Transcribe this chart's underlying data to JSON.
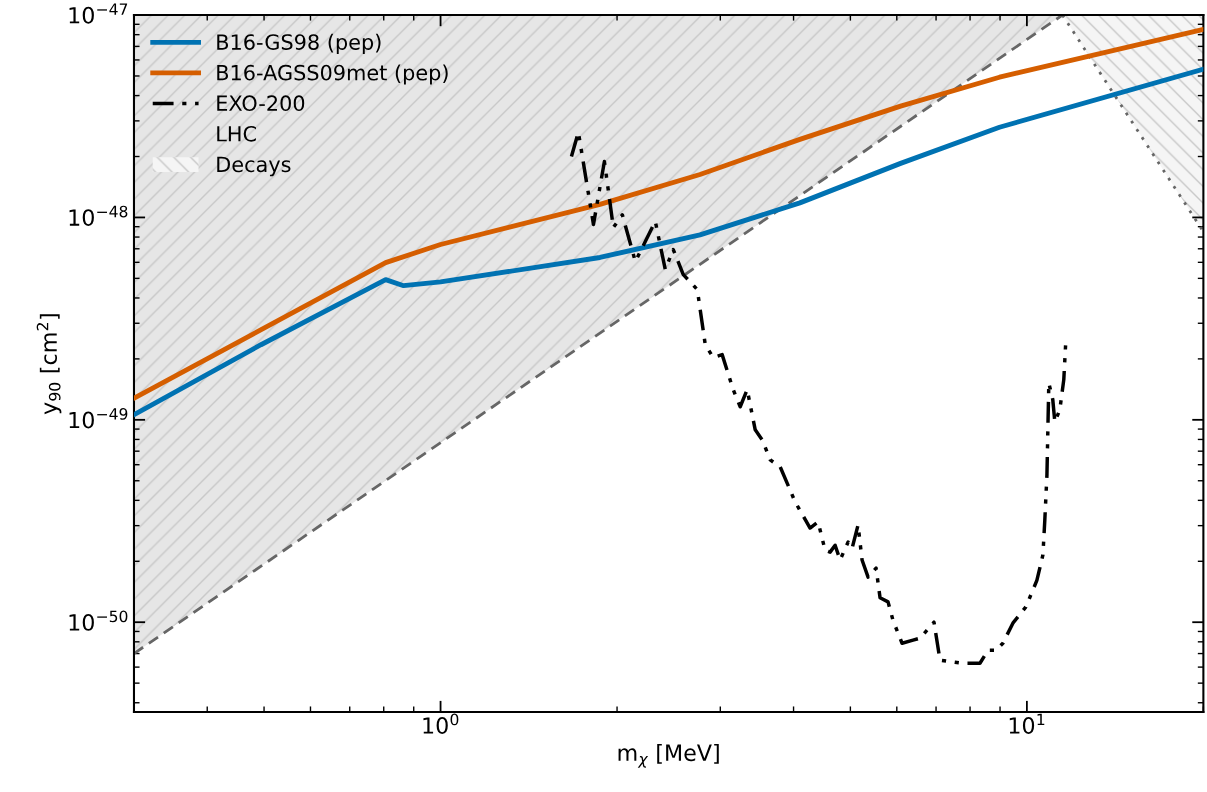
{
  "chart_data": {
    "type": "line",
    "xlabel": "m$_{χ}$ [MeV]",
    "ylabel": "y$_{90}$ [cm$^{2}$]",
    "log": "xy",
    "xlim": [
      0.3,
      20
    ],
    "ylim": [
      3.6e-51,
      1e-47
    ],
    "xticks": [
      {
        "value": 1,
        "label": "10$^{0}$"
      },
      {
        "value": 10,
        "label": "10$^{1}$"
      }
    ],
    "yticks": [
      {
        "value": 1e-50,
        "label": "10$^{−50}$"
      },
      {
        "value": 1e-49,
        "label": "10$^{−49}$"
      },
      {
        "value": 1e-48,
        "label": "10$^{−48}$"
      },
      {
        "value": 1e-47,
        "label": "10$^{−47}$"
      }
    ],
    "legend": "top left",
    "grid": false,
    "series": [
      {
        "name": "B16-GS98 (pep)",
        "color": "#0072b2",
        "line_style": "solid",
        "x": [
          0.3,
          0.494,
          0.806,
          0.865,
          1.0,
          1.87,
          2.77,
          4.1,
          6.09,
          8.98,
          20
        ],
        "values": [
          1.06e-49,
          2.35e-49,
          4.93e-49,
          4.6e-49,
          4.8e-49,
          6.34e-49,
          8.2e-49,
          1.18e-48,
          1.85e-48,
          2.79e-48,
          5.4e-48
        ]
      },
      {
        "name": "B16-AGSS09met (pep)",
        "color": "#d55e00",
        "line_style": "solid",
        "x": [
          0.3,
          0.806,
          1.0,
          1.87,
          2.77,
          4.1,
          6.09,
          8.98,
          20
        ],
        "values": [
          1.28e-49,
          5.98e-49,
          7.35e-49,
          1.16e-48,
          1.63e-48,
          2.43e-48,
          3.55e-48,
          4.93e-48,
          8.5e-48
        ]
      },
      {
        "name": "EXO-200",
        "color": "#000000",
        "line_style": "dashdot",
        "x": [
          1.672,
          1.718,
          1.823,
          1.903,
          1.971,
          2.042,
          2.149,
          2.324,
          2.417,
          2.494,
          2.594,
          2.741,
          2.828,
          2.918,
          3.022,
          3.156,
          3.244,
          3.334,
          3.441,
          3.537,
          3.65,
          3.796,
          4.025,
          4.268,
          4.405,
          4.527,
          4.617,
          4.709,
          4.802,
          4.956,
          5.034,
          5.153,
          5.235,
          5.36,
          5.531,
          5.618,
          5.797,
          5.912,
          6.125,
          6.395,
          6.573,
          6.944,
          7.109,
          7.539,
          7.78,
          8.317,
          8.583,
          8.858,
          9.101,
          9.465,
          9.961,
          10.4,
          10.65,
          10.73,
          10.82,
          10.9,
          11.07,
          11.16,
          11.38,
          11.56,
          11.65
        ],
        "values": [
          2e-48,
          2.64e-48,
          9.23e-49,
          1.89e-48,
          8.92e-49,
          1.03e-48,
          6.05e-49,
          9.56e-49,
          5.53e-49,
          6.94e-49,
          5.22e-49,
          4.4e-49,
          2.35e-49,
          2.03e-49,
          2.1e-49,
          1.41e-49,
          1.16e-49,
          1.41e-49,
          8.92e-50,
          7.96e-50,
          6.34e-50,
          5.85e-50,
          3.93e-50,
          2.92e-50,
          3.13e-50,
          2.27e-50,
          2.22e-50,
          2.4e-50,
          2.03e-50,
          2.49e-50,
          2.32e-50,
          3.02e-50,
          2.03e-50,
          1.67e-50,
          1.85e-50,
          1.32e-50,
          1.26e-50,
          1.02e-50,
          7.87e-51,
          8.15e-51,
          8.34e-51,
          1e-50,
          6.49e-51,
          6.34e-51,
          6.27e-51,
          6.27e-51,
          7.26e-51,
          7.26e-51,
          7.87e-51,
          9.89e-51,
          1.19e-50,
          1.61e-50,
          2.15e-50,
          3.2e-50,
          5.35e-50,
          1.52e-49,
          1.26e-49,
          9.77e-50,
          1.12e-49,
          1.58e-49,
          2.43e-49
        ]
      },
      {
        "name": "LHC",
        "type": "area",
        "color": "#e6e6e6",
        "line_style": "dashed",
        "x": [
          0.3,
          11.5
        ],
        "values": [
          7e-51,
          1e-47
        ]
      },
      {
        "name": "Decays",
        "type": "area",
        "color": "#f5f5f5",
        "line_style": "dotted",
        "x": [
          11.5,
          20
        ],
        "values": [
          1e-47,
          8.5e-49
        ]
      }
    ]
  }
}
